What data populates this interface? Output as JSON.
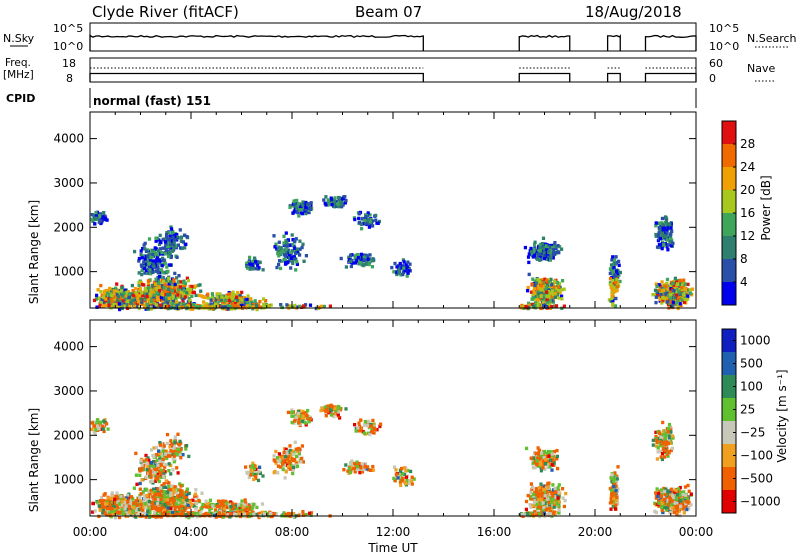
{
  "header": {
    "title": "Clyde River (fitACF)",
    "beam": "Beam 07",
    "date": "18/Aug/2018"
  },
  "panels": {
    "nsky": {
      "left_label": "N.Sky",
      "left_ticks": [
        "10^5",
        "10^0"
      ],
      "right_ticks": [
        "10^5",
        "10^0"
      ],
      "right_label": "N.Search"
    },
    "freq": {
      "left_label_1": "Freq.",
      "left_label_2": "[MHz]",
      "left_ticks": [
        "18",
        "8"
      ],
      "right_ticks": [
        "60",
        "0"
      ],
      "right_label": "Nave"
    },
    "cpid": {
      "label": "CPID",
      "mode": "normal (fast) 151"
    }
  },
  "colors": {
    "power": [
      "#0000ee",
      "#2a4fa8",
      "#2f7f6f",
      "#3ea55a",
      "#a8c81e",
      "#f0a000",
      "#f06a00",
      "#e01010"
    ],
    "velocity": [
      "#e00000",
      "#f06000",
      "#f0a020",
      "#c8c8b8",
      "#60c030",
      "#2e8b57",
      "#2060b0",
      "#1020c0"
    ]
  },
  "chart_data": [
    {
      "type": "heatmap",
      "name": "power",
      "xlabel": "",
      "ylabel": "Slant Range [km]",
      "x_ticks": [
        "00:00",
        "04:00",
        "08:00",
        "12:00",
        "16:00",
        "20:00",
        "00:00"
      ],
      "x_range_hours": [
        0,
        24
      ],
      "y_ticks": [
        "1000",
        "2000",
        "3000",
        "4000"
      ],
      "y_range_km": [
        180,
        4600
      ],
      "colorbar": {
        "label": "Power [dB]",
        "ticks": [
          "4",
          "8",
          "12",
          "16",
          "20",
          "24",
          "28"
        ],
        "range": [
          0,
          32
        ]
      },
      "data_gaps_hours": [
        [
          13.2,
          17.0
        ],
        [
          19.0,
          20.5
        ],
        [
          21.0,
          22.0
        ]
      ]
    },
    {
      "type": "heatmap",
      "name": "velocity",
      "xlabel": "Time UT",
      "ylabel": "Slant Range [km]",
      "x_ticks": [
        "00:00",
        "04:00",
        "08:00",
        "12:00",
        "16:00",
        "20:00",
        "00:00"
      ],
      "x_range_hours": [
        0,
        24
      ],
      "y_ticks": [
        "1000",
        "2000",
        "3000",
        "4000"
      ],
      "y_range_km": [
        180,
        4600
      ],
      "colorbar": {
        "label": "Velocity [m s⁻¹]",
        "ticks": [
          "1000",
          "500",
          "100",
          "25",
          "−25",
          "−100",
          "−500",
          "−1000"
        ]
      },
      "data_gaps_hours": [
        [
          13.2,
          17.0
        ],
        [
          19.0,
          20.5
        ],
        [
          21.0,
          22.0
        ]
      ]
    }
  ]
}
